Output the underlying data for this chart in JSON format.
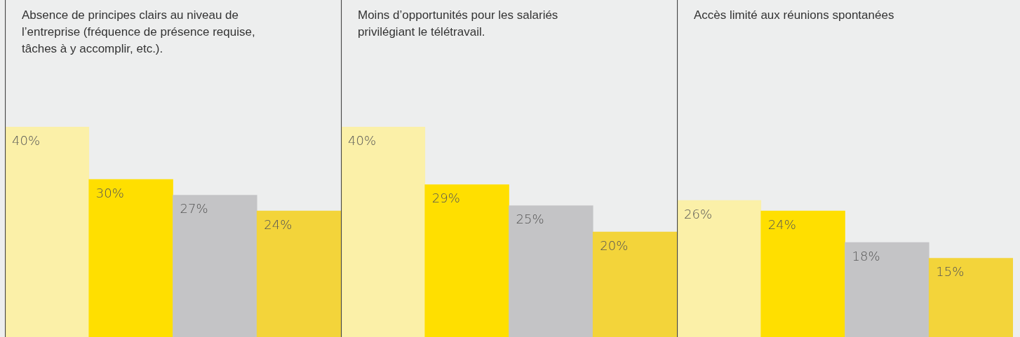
{
  "chart_data": [
    {
      "type": "bar",
      "title": "Absence de principes clairs au niveau de l’entreprise (fréquence de présence requise, tâches à y accomplir, etc.).",
      "categories": [
        null,
        null,
        null,
        null
      ],
      "values": [
        40,
        30,
        27,
        24
      ],
      "value_labels": [
        "40%",
        "30%",
        "27%",
        "24%"
      ],
      "colors": [
        "#fbf0a8",
        "#ffdf00",
        "#c4c4c6",
        "#f3d43a"
      ],
      "tick_labels": false
    },
    {
      "type": "bar",
      "title": "Moins d’opportunités pour les salariés privilégiant le télétravail.",
      "categories": [
        null,
        null,
        null,
        null
      ],
      "values": [
        40,
        29,
        25,
        20
      ],
      "value_labels": [
        "40%",
        "29%",
        "25%",
        "20%"
      ],
      "colors": [
        "#fbf0a8",
        "#ffdf00",
        "#c4c4c6",
        "#f3d43a"
      ],
      "tick_labels": false
    },
    {
      "type": "bar",
      "title": "Accès limité aux réunions spontanées",
      "categories": [
        null,
        null,
        null,
        null
      ],
      "values": [
        26,
        24,
        18,
        15
      ],
      "value_labels": [
        "26%",
        "24%",
        "18%",
        "15%"
      ],
      "colors": [
        "#fbf0a8",
        "#ffdf00",
        "#c4c4c6",
        "#f3d43a"
      ],
      "tick_labels": false
    }
  ]
}
